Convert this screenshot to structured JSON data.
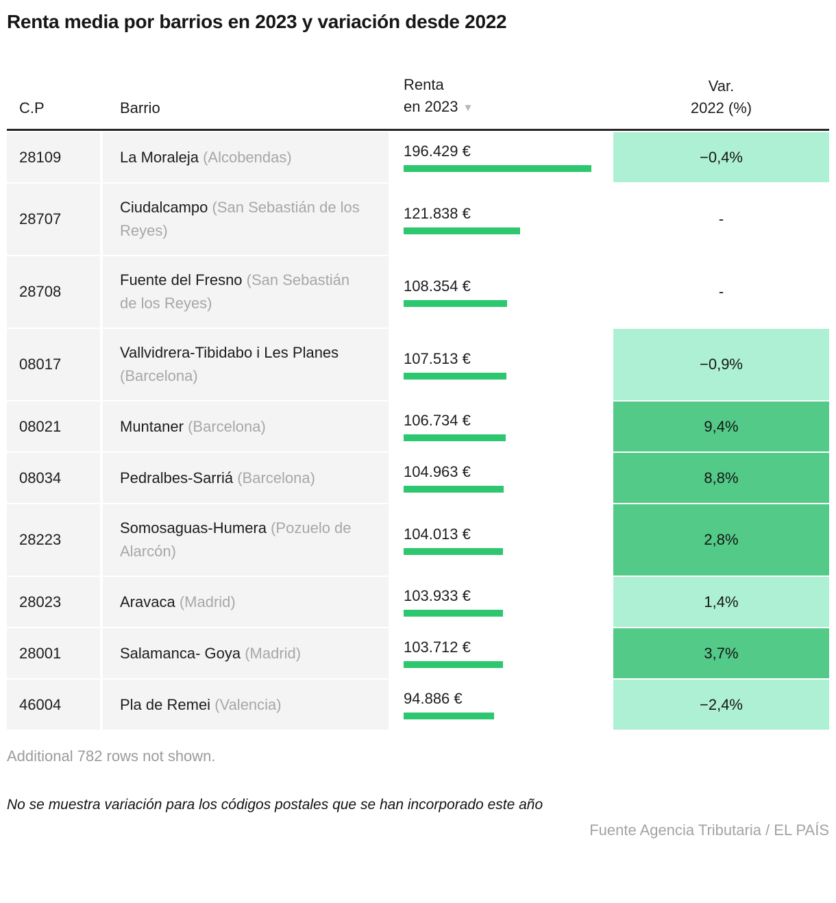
{
  "title": "Renta media por barrios en 2023 y variación desde 2022",
  "colors": {
    "bar_green": "#2dc76f",
    "cell_green_medium": "#53ca88",
    "cell_green_light": "#adf0d3",
    "cell_none": "transparent",
    "row_bg": "#f4f4f4",
    "sort_triangle_gray": "#b5b5b5"
  },
  "table": {
    "columns": {
      "cp": "C.P",
      "barrio": "Barrio",
      "renta_line1": "Renta",
      "renta_line2": "en 2023",
      "var_line1": "Var.",
      "var_line2": "2022 (%)"
    },
    "sort_icon": "▼",
    "max_renta": 196429,
    "rows": [
      {
        "cp": "28109",
        "name": "La Moraleja",
        "muni": "(Alcobendas)",
        "renta_label": "196.429 €",
        "renta_value": 196429,
        "var_label": "−0,4%",
        "var_tone": "light"
      },
      {
        "cp": "28707",
        "name": "Ciudalcampo",
        "muni": "(San Sebastián de los Reyes)",
        "renta_label": "121.838 €",
        "renta_value": 121838,
        "var_label": "-",
        "var_tone": "none"
      },
      {
        "cp": "28708",
        "name": "Fuente del Fresno",
        "muni": "(San Sebastián de los Reyes)",
        "renta_label": "108.354 €",
        "renta_value": 108354,
        "var_label": "-",
        "var_tone": "none"
      },
      {
        "cp": "08017",
        "name": "Vallvidrera-Tibidabo i Les Planes",
        "muni": "(Barcelona)",
        "renta_label": "107.513 €",
        "renta_value": 107513,
        "var_label": "−0,9%",
        "var_tone": "light"
      },
      {
        "cp": "08021",
        "name": "Muntaner",
        "muni": "(Barcelona)",
        "renta_label": "106.734 €",
        "renta_value": 106734,
        "var_label": "9,4%",
        "var_tone": "medium"
      },
      {
        "cp": "08034",
        "name": "Pedralbes-Sarriá",
        "muni": "(Barcelona)",
        "renta_label": "104.963 €",
        "renta_value": 104963,
        "var_label": "8,8%",
        "var_tone": "medium"
      },
      {
        "cp": "28223",
        "name": "Somosaguas-Humera",
        "muni": "(Pozuelo de Alarcón)",
        "renta_label": "104.013 €",
        "renta_value": 104013,
        "var_label": "2,8%",
        "var_tone": "medium"
      },
      {
        "cp": "28023",
        "name": "Aravaca",
        "muni": "(Madrid)",
        "renta_label": "103.933 €",
        "renta_value": 103933,
        "var_label": "1,4%",
        "var_tone": "light"
      },
      {
        "cp": "28001",
        "name": "Salamanca- Goya",
        "muni": "(Madrid)",
        "renta_label": "103.712 €",
        "renta_value": 103712,
        "var_label": "3,7%",
        "var_tone": "medium"
      },
      {
        "cp": "46004",
        "name": "Pla de Remei",
        "muni": "(Valencia)",
        "renta_label": "94.886 €",
        "renta_value": 94886,
        "var_label": "−2,4%",
        "var_tone": "light"
      }
    ]
  },
  "footer": {
    "additional": "Additional 782 rows not shown.",
    "note": "No se muestra variación para los códigos postales que se han incorporado este año",
    "source": "Fuente Agencia Tributaria / EL PAÍS"
  },
  "chart_data": {
    "type": "bar",
    "orientation": "horizontal",
    "title": "Renta media por barrios en 2023 y variación desde 2022",
    "categories": [
      "28109 La Moraleja (Alcobendas)",
      "28707 Ciudalcampo (San Sebastián de los Reyes)",
      "28708 Fuente del Fresno (San Sebastián de los Reyes)",
      "08017 Vallvidrera-Tibidabo i Les Planes (Barcelona)",
      "08021 Muntaner (Barcelona)",
      "08034 Pedralbes-Sarriá (Barcelona)",
      "28223 Somosaguas-Humera (Pozuelo de Alarcón)",
      "28023 Aravaca (Madrid)",
      "28001 Salamanca- Goya (Madrid)",
      "46004 Pla de Remei (Valencia)"
    ],
    "series": [
      {
        "name": "Renta en 2023 (€)",
        "values": [
          196429,
          121838,
          108354,
          107513,
          106734,
          104963,
          104013,
          103933,
          103712,
          94886
        ]
      },
      {
        "name": "Var. 2022 (%)",
        "values": [
          -0.4,
          null,
          null,
          -0.9,
          9.4,
          8.8,
          2.8,
          1.4,
          3.7,
          -2.4
        ]
      }
    ],
    "xlim": [
      0,
      196429
    ],
    "grid": false,
    "legend_position": "none"
  }
}
